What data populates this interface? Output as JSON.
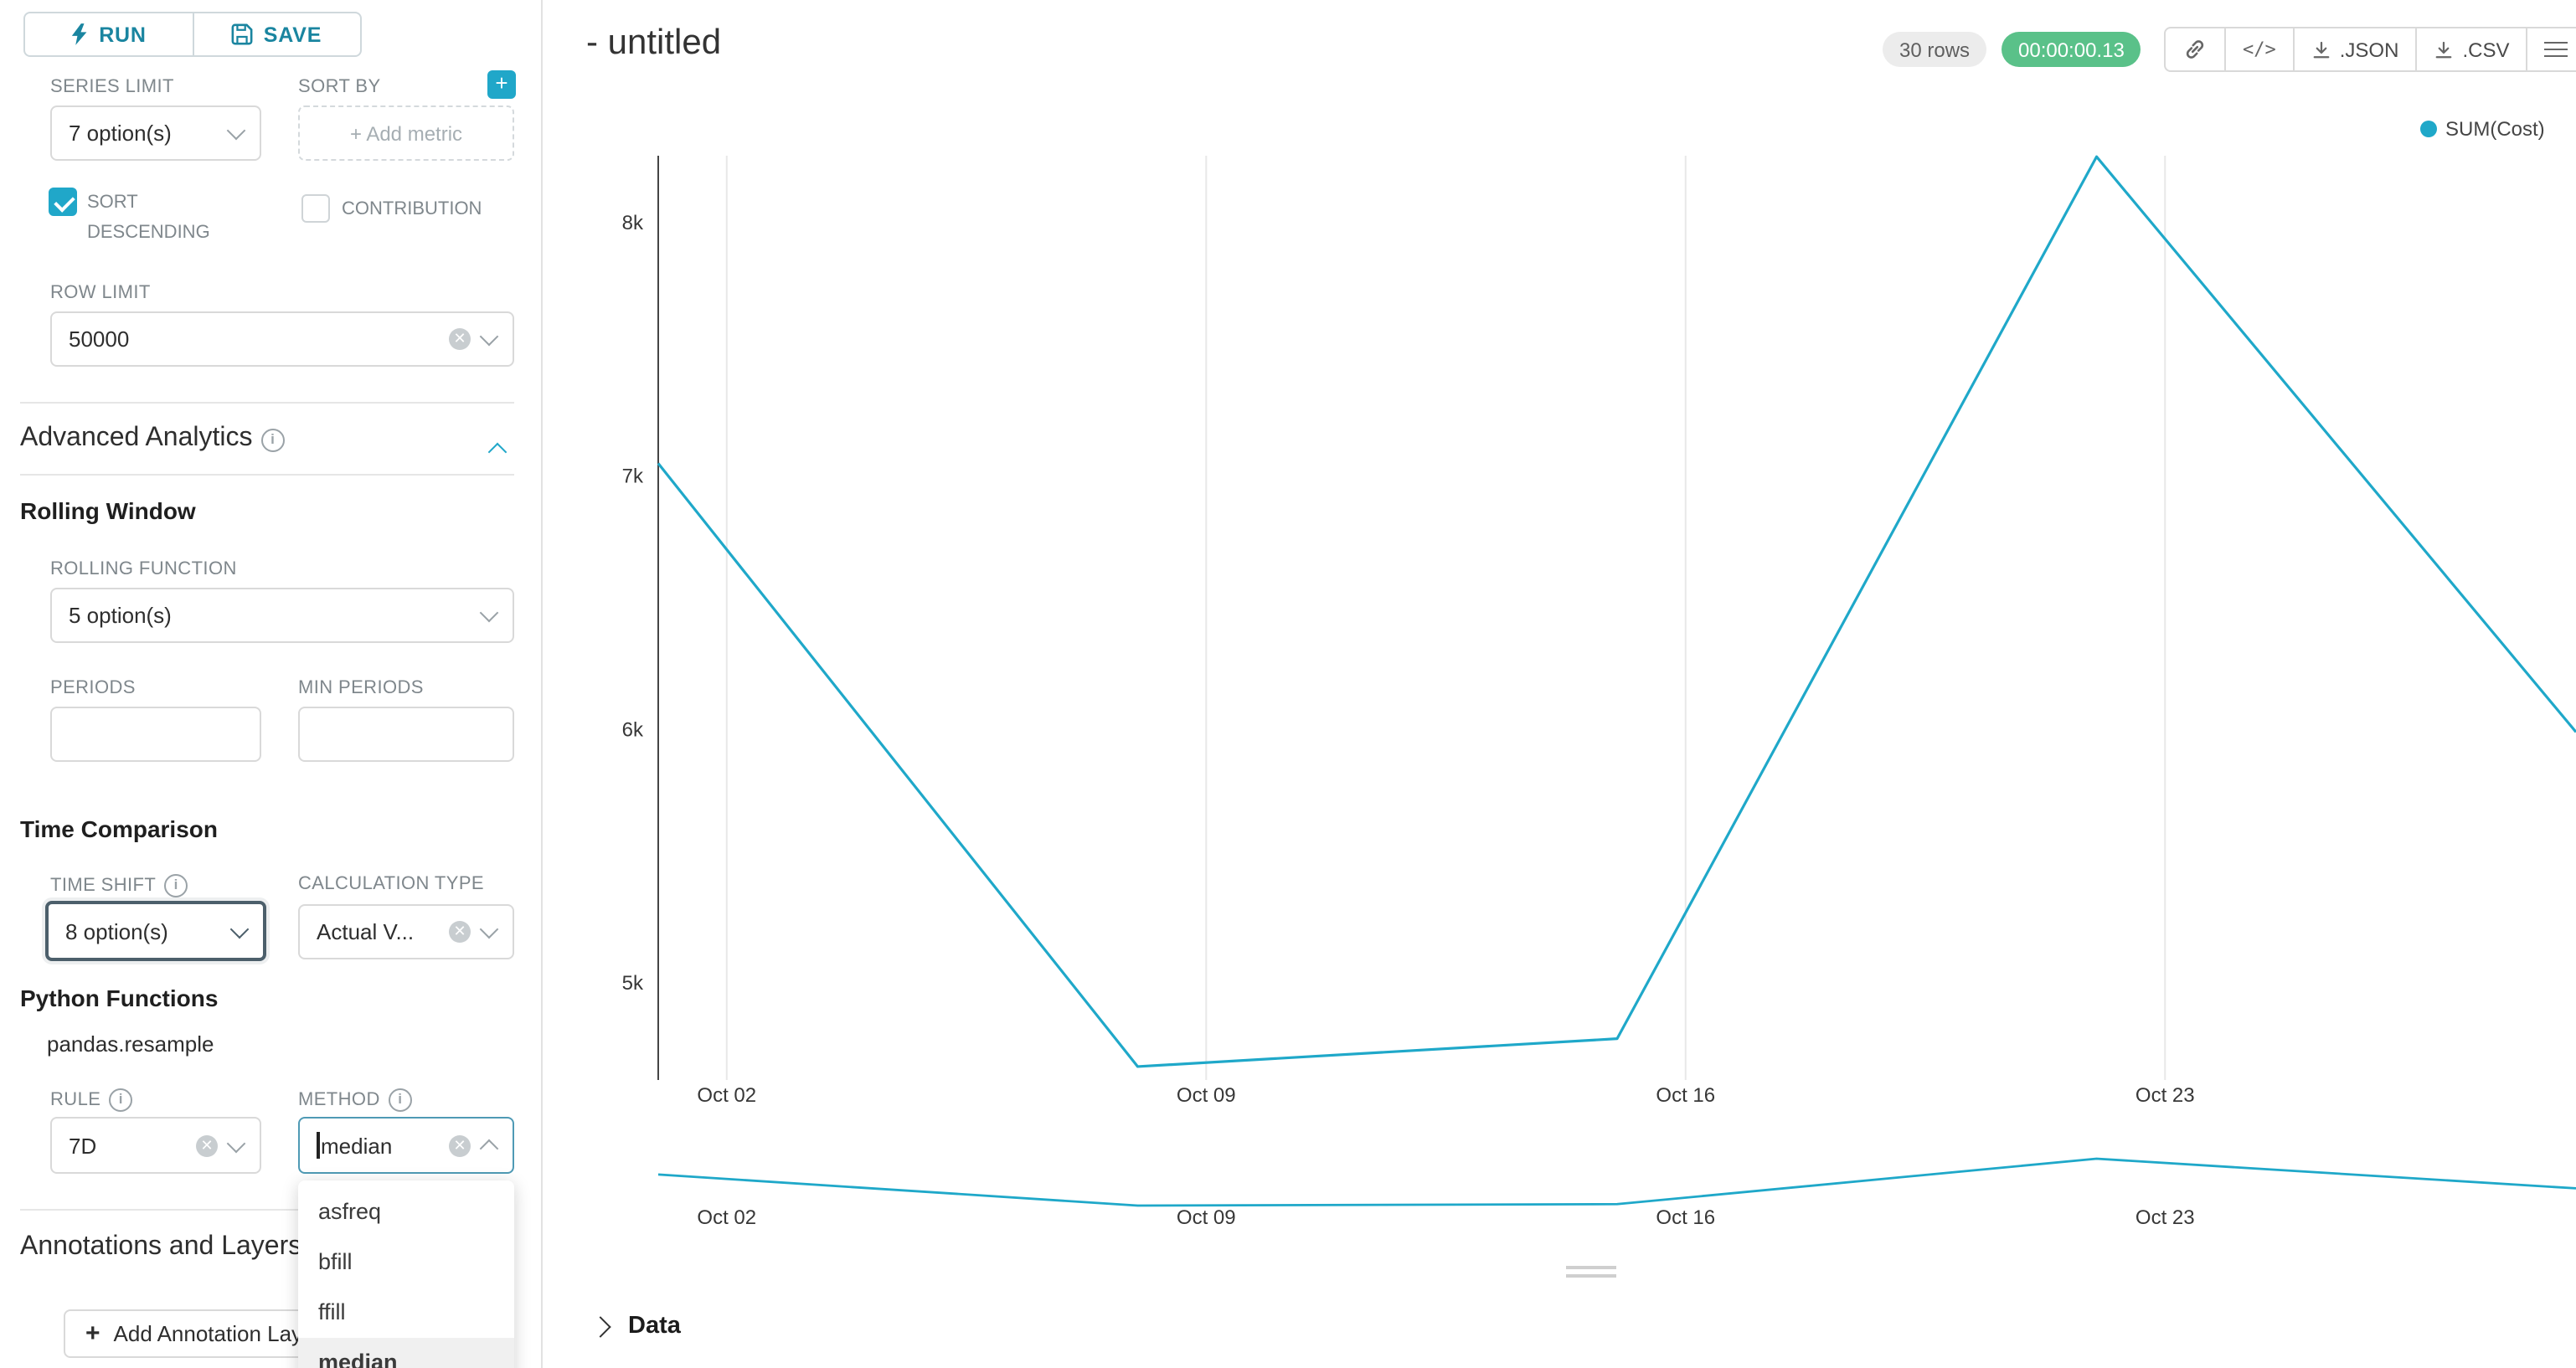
{
  "accent": "#20a7c9",
  "toolbar": {
    "run": "RUN",
    "save": "SAVE"
  },
  "sidebar": {
    "series_limit": {
      "label": "SERIES LIMIT",
      "value": "7 option(s)"
    },
    "sort_by": {
      "label": "SORT BY",
      "placeholder": "+ Add metric"
    },
    "sort_descending": {
      "label": "SORT DESCENDING",
      "checked": true
    },
    "contribution": {
      "label": "CONTRIBUTION",
      "checked": false
    },
    "row_limit": {
      "label": "ROW LIMIT",
      "value": "50000"
    },
    "advanced_analytics_title": "Advanced Analytics",
    "rolling_window": {
      "title": "Rolling Window",
      "rolling_function_label": "ROLLING FUNCTION",
      "rolling_function_value": "5 option(s)",
      "periods_label": "PERIODS",
      "min_periods_label": "MIN PERIODS",
      "periods_value": "",
      "min_periods_value": ""
    },
    "time_comparison": {
      "title": "Time Comparison",
      "time_shift_label": "TIME SHIFT",
      "time_shift_value": "8 option(s)",
      "calculation_type_label": "CALCULATION TYPE",
      "calculation_type_value": "Actual V..."
    },
    "python_functions": {
      "title": "Python Functions",
      "subtitle": "pandas.resample",
      "rule_label": "RULE",
      "rule_value": "7D",
      "method_label": "METHOD",
      "method_value": "median",
      "method_options": [
        "asfreq",
        "bfill",
        "ffill",
        "median"
      ],
      "method_selected": "median"
    },
    "annotations": {
      "title": "Annotations and Layers",
      "add_button": "Add Annotation Layer"
    }
  },
  "header": {
    "title": "- untitled",
    "row_count": "30 rows",
    "duration": "00:00:00.13",
    "code_icon": "</>",
    "json_button": ".JSON",
    "csv_button": ".CSV"
  },
  "data_panel": {
    "title": "Data"
  },
  "chart_data": {
    "type": "line",
    "title": "- untitled",
    "legend": [
      "SUM(Cost)"
    ],
    "legend_position": "top-right",
    "grid": "vertical-only",
    "line_color": "#1fa8c9",
    "x_axis": {
      "tick_labels": [
        "Oct 02",
        "Oct 09",
        "Oct 16",
        "Oct 23"
      ],
      "tick_days": [
        1,
        8,
        15,
        22
      ],
      "range_days": [
        0,
        28
      ]
    },
    "y_axis": {
      "tick_labels": [
        "8k",
        "7k",
        "6k",
        "5k"
      ],
      "tick_values": [
        8000,
        7000,
        6000,
        5000
      ],
      "range": [
        4617,
        8264
      ]
    },
    "series": [
      {
        "name": "SUM(Cost)",
        "x_days": [
          0,
          7,
          14,
          21,
          28
        ],
        "values": [
          7050,
          4670,
          4780,
          8260,
          5990
        ]
      }
    ],
    "mini_chart": {
      "x_tick_labels": [
        "Oct 02",
        "Oct 09",
        "Oct 16",
        "Oct 23"
      ]
    }
  }
}
